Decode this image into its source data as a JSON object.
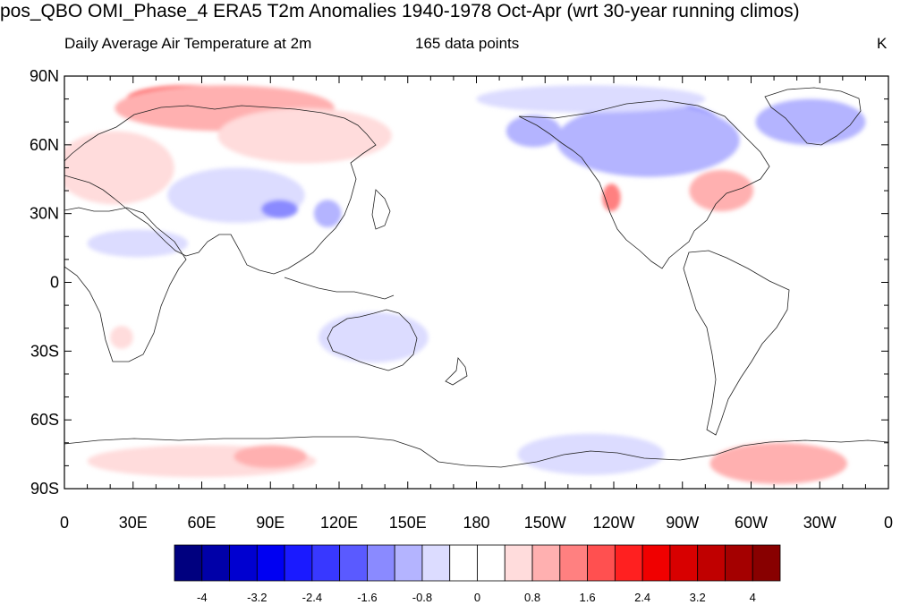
{
  "title": "pos_QBO OMI_Phase_4 ERA5 T2m Anomalies 1940-1978 Oct-Apr (wrt 30-year running climos)",
  "subtitle_left": "Daily Average Air Temperature at 2m",
  "subtitle_center": "165 data points",
  "units": "K",
  "map": {
    "projection": "cylindrical-equidistant",
    "center_longitude": 180,
    "lat_labels": [
      "90N",
      "60N",
      "30N",
      "0",
      "30S",
      "60S",
      "90S"
    ],
    "lon_labels": [
      "0",
      "30E",
      "60E",
      "90E",
      "120E",
      "150E",
      "180",
      "150W",
      "120W",
      "90W",
      "60W",
      "30W",
      "0"
    ]
  },
  "colorbar": {
    "labels": [
      "-4",
      "-3.2",
      "-2.4",
      "-1.6",
      "-0.8",
      "0",
      "0.8",
      "1.6",
      "2.4",
      "3.2",
      "4"
    ],
    "colors": [
      "#00007f",
      "#0000a8",
      "#0000d0",
      "#0000f2",
      "#1a1aff",
      "#3838ff",
      "#5a5aff",
      "#8a8aff",
      "#b4b4ff",
      "#dcdcff",
      "#ffffff",
      "#ffffff",
      "#ffdcdc",
      "#ffb0b0",
      "#ff8080",
      "#ff5050",
      "#ff2020",
      "#f00000",
      "#d80000",
      "#c00000",
      "#a40000",
      "#880000"
    ]
  },
  "anomaly_blobs": [
    {
      "name": "siberia-warm",
      "lon": 55,
      "lat": 80,
      "rx": 28,
      "ry": 6,
      "color": "#ff5050"
    },
    {
      "name": "siberia-warm-halo",
      "lon": 70,
      "lat": 76,
      "rx": 48,
      "ry": 10,
      "color": "#ffb0b0"
    },
    {
      "name": "east-siberia-warm",
      "lon": 112,
      "lat": 67,
      "rx": 22,
      "ry": 8,
      "color": "#ff8080"
    },
    {
      "name": "east-siberia-halo",
      "lon": 105,
      "lat": 64,
      "rx": 38,
      "ry": 12,
      "color": "#ffdcdc"
    },
    {
      "name": "europe-warm",
      "lon": 22,
      "lat": 48,
      "rx": 16,
      "ry": 11,
      "color": "#ff8080"
    },
    {
      "name": "europe-halo",
      "lon": 22,
      "lat": 50,
      "rx": 26,
      "ry": 16,
      "color": "#ffdcdc"
    },
    {
      "name": "middle-east-cold",
      "lon": 67,
      "lat": 42,
      "rx": 14,
      "ry": 7,
      "color": "#8a8aff"
    },
    {
      "name": "central-asia-cold",
      "lon": 75,
      "lat": 38,
      "rx": 30,
      "ry": 12,
      "color": "#dcdcff"
    },
    {
      "name": "tibet-cold",
      "lon": 94,
      "lat": 32,
      "rx": 8,
      "ry": 4,
      "color": "#8a8aff"
    },
    {
      "name": "china-cold",
      "lon": 115,
      "lat": 30,
      "rx": 6,
      "ry": 6,
      "color": "#b4b4ff"
    },
    {
      "name": "sahara-cold",
      "lon": 32,
      "lat": 17,
      "rx": 22,
      "ry": 6,
      "color": "#dcdcff"
    },
    {
      "name": "canada-cold",
      "lon": 262,
      "lat": 68,
      "rx": 26,
      "ry": 10,
      "color": "#5a5aff"
    },
    {
      "name": "canada-cold-halo",
      "lon": 255,
      "lat": 62,
      "rx": 40,
      "ry": 16,
      "color": "#b4b4ff"
    },
    {
      "name": "greenland-cold",
      "lon": 326,
      "lat": 72,
      "rx": 14,
      "ry": 7,
      "color": "#5a5aff"
    },
    {
      "name": "greenland-cold-halo",
      "lon": 326,
      "lat": 70,
      "rx": 24,
      "ry": 10,
      "color": "#b4b4ff"
    },
    {
      "name": "alaska-cold",
      "lon": 205,
      "lat": 66,
      "rx": 12,
      "ry": 7,
      "color": "#b4b4ff"
    },
    {
      "name": "arctic-cold",
      "lon": 230,
      "lat": 80,
      "rx": 50,
      "ry": 6,
      "color": "#dcdcff"
    },
    {
      "name": "us-east-warm",
      "lon": 287,
      "lat": 40,
      "rx": 14,
      "ry": 9,
      "color": "#ffb0b0"
    },
    {
      "name": "us-west-warm",
      "lon": 239,
      "lat": 37,
      "rx": 4,
      "ry": 6,
      "color": "#ff8080"
    },
    {
      "name": "africa-warm",
      "lon": 25,
      "lat": -24,
      "rx": 5,
      "ry": 5,
      "color": "#ffdcdc"
    },
    {
      "name": "australia-cold",
      "lon": 135,
      "lat": -23,
      "rx": 16,
      "ry": 7,
      "color": "#b4b4ff"
    },
    {
      "name": "australia-halo",
      "lon": 135,
      "lat": -24,
      "rx": 24,
      "ry": 11,
      "color": "#dcdcff"
    },
    {
      "name": "antarctic-peninsula-warm",
      "lon": 312,
      "lat": -80,
      "rx": 16,
      "ry": 5,
      "color": "#ff2020"
    },
    {
      "name": "antarctic-peninsula-halo",
      "lon": 312,
      "lat": -79,
      "rx": 30,
      "ry": 9,
      "color": "#ffb0b0"
    },
    {
      "name": "west-antarctic-cold",
      "lon": 238,
      "lat": -78,
      "rx": 14,
      "ry": 5,
      "color": "#8a8aff"
    },
    {
      "name": "west-antarctic-halo",
      "lon": 230,
      "lat": -75,
      "rx": 32,
      "ry": 9,
      "color": "#dcdcff"
    },
    {
      "name": "east-antarctic-warm",
      "lon": 60,
      "lat": -78,
      "rx": 50,
      "ry": 7,
      "color": "#ffdcdc"
    },
    {
      "name": "east-antarctic-warm-2",
      "lon": 90,
      "lat": -76,
      "rx": 16,
      "ry": 5,
      "color": "#ffb0b0"
    }
  ]
}
